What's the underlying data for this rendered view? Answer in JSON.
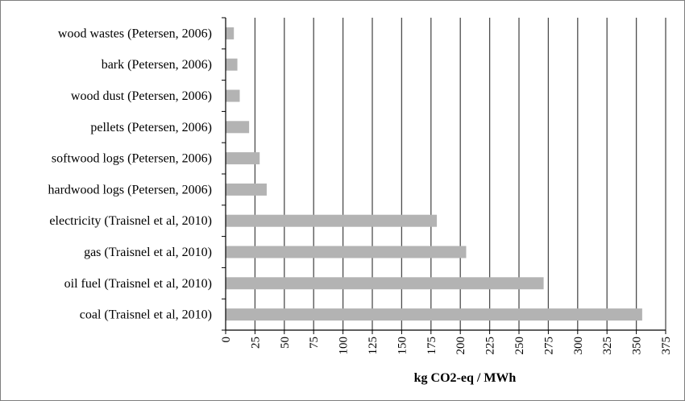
{
  "chart_data": {
    "type": "bar",
    "orientation": "horizontal",
    "categories": [
      "wood wastes (Petersen, 2006)",
      "bark (Petersen, 2006)",
      "wood dust (Petersen, 2006)",
      "pellets (Petersen, 2006)",
      "softwood logs (Petersen,  2006)",
      "hardwood logs (Petersen, 2006)",
      "electricity (Traisnel et al, 2010)",
      "gas (Traisnel et al, 2010)",
      "oil fuel (Traisnel et al, 2010)",
      "coal (Traisnel et al, 2010)"
    ],
    "values": [
      7,
      10,
      12,
      20,
      29,
      35,
      180,
      205,
      271,
      355
    ],
    "xlabel": "kg CO2-eq / MWh",
    "ylabel": "",
    "title": "",
    "xlim": [
      0,
      375
    ],
    "xticks": [
      0,
      25,
      50,
      75,
      100,
      125,
      150,
      175,
      200,
      225,
      250,
      275,
      300,
      325,
      350,
      375
    ],
    "grid": "vertical",
    "bar_color": "#b3b3b3",
    "grid_color": "#4d4d4d",
    "legend": "none"
  }
}
